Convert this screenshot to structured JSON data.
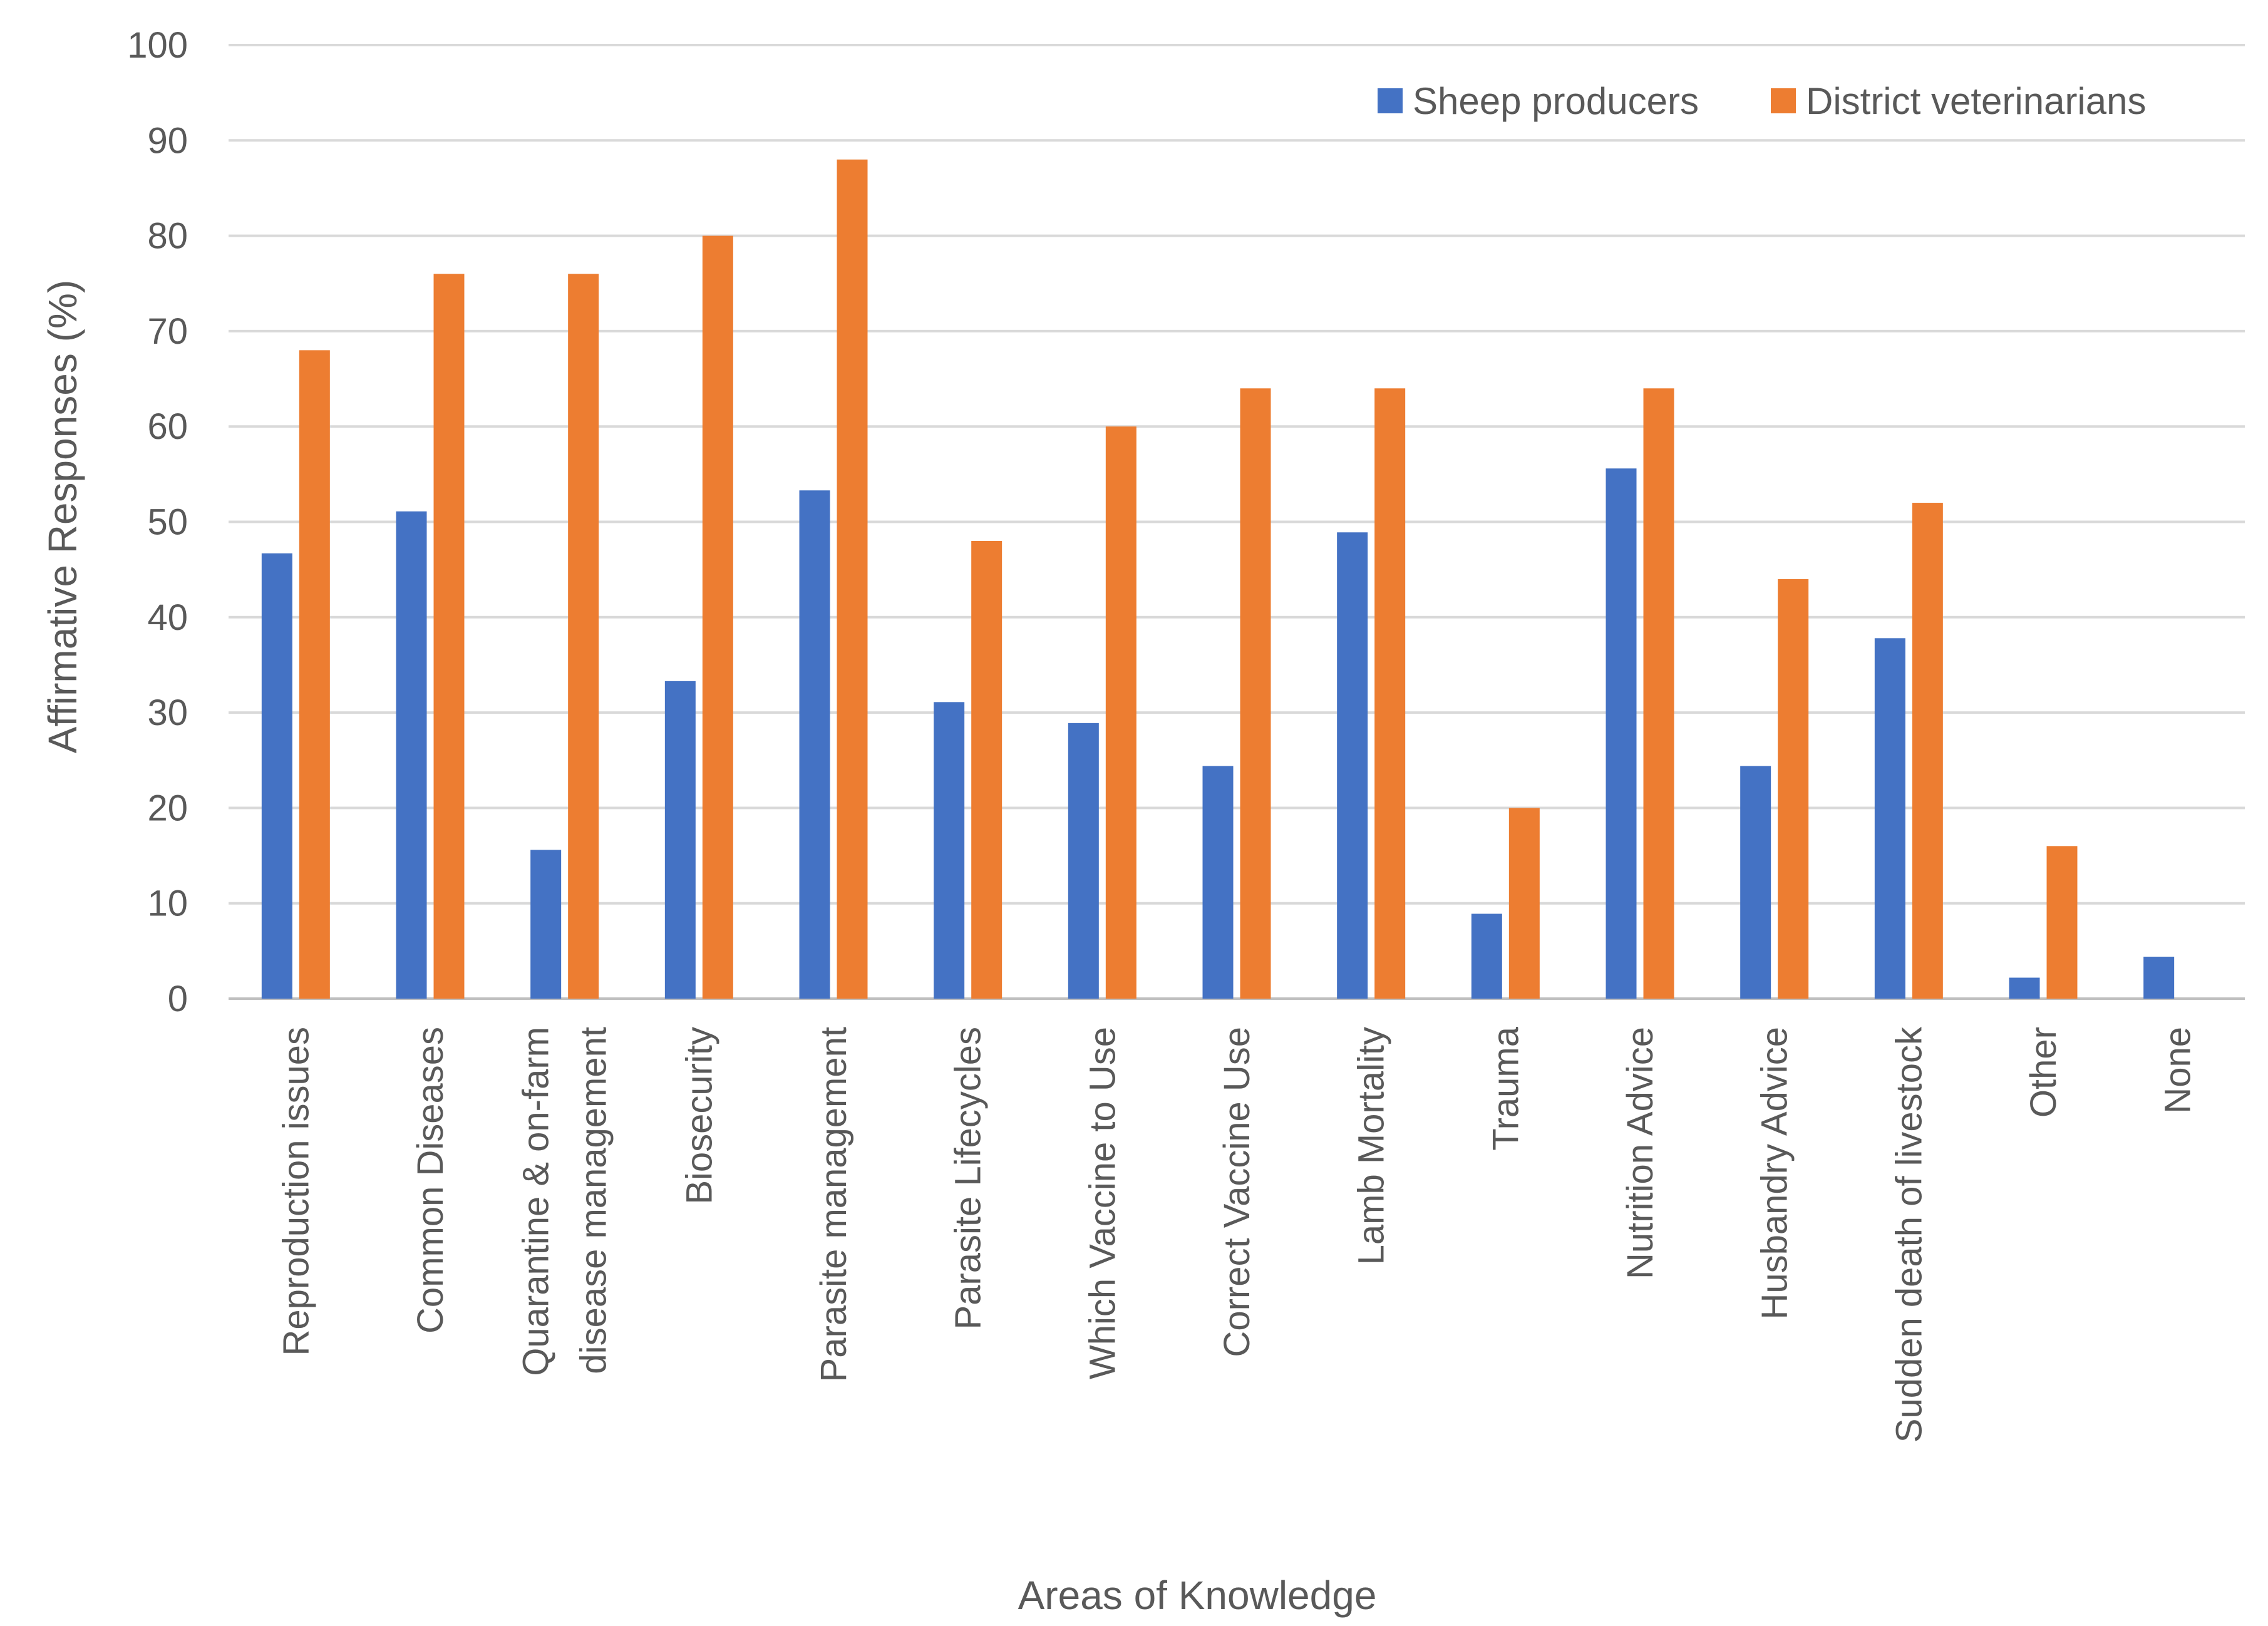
{
  "chart_data": {
    "type": "bar",
    "title": "",
    "xlabel": "Areas of Knowledge",
    "ylabel": "Affirmative Responses (%)",
    "ylim": [
      0,
      100
    ],
    "yticks": [
      0,
      10,
      20,
      30,
      40,
      50,
      60,
      70,
      80,
      90,
      100
    ],
    "grid": true,
    "legend_position": "top-right",
    "categories": [
      "Reproduction issues",
      "Common Diseases",
      "Quarantine & on-farm disease management",
      "Biosecurity",
      "Parasite management",
      "Parasite Lifecycles",
      "Which Vaccine to Use",
      "Correct Vaccine Use",
      "Lamb Mortality",
      "Trauma",
      "Nutrition Advice",
      "Husbandry Advice",
      "Sudden death of livestock",
      "Other",
      "None"
    ],
    "category_lines": [
      [
        "Reproduction issues"
      ],
      [
        "Common Diseases"
      ],
      [
        "Quarantine & on-farm",
        "disease management"
      ],
      [
        "Biosecurity"
      ],
      [
        "Parasite management"
      ],
      [
        "Parasite Lifecycles"
      ],
      [
        "Which Vaccine to Use"
      ],
      [
        "Correct Vaccine Use"
      ],
      [
        "Lamb Mortality"
      ],
      [
        "Trauma"
      ],
      [
        "Nutrition Advice"
      ],
      [
        "Husbandry Advice"
      ],
      [
        "Sudden death of livestock"
      ],
      [
        "Other"
      ],
      [
        "None"
      ]
    ],
    "series": [
      {
        "name": "Sheep producers",
        "color": "#4472C4",
        "values": [
          46.7,
          51.1,
          15.6,
          33.3,
          53.3,
          31.1,
          28.9,
          24.4,
          48.9,
          8.9,
          55.6,
          24.4,
          37.8,
          2.2,
          4.4
        ]
      },
      {
        "name": "District veterinarians",
        "color": "#ED7D31",
        "values": [
          68,
          76,
          76,
          80,
          88,
          48,
          60,
          64,
          64,
          20,
          64,
          44,
          52,
          16,
          0
        ]
      }
    ]
  }
}
